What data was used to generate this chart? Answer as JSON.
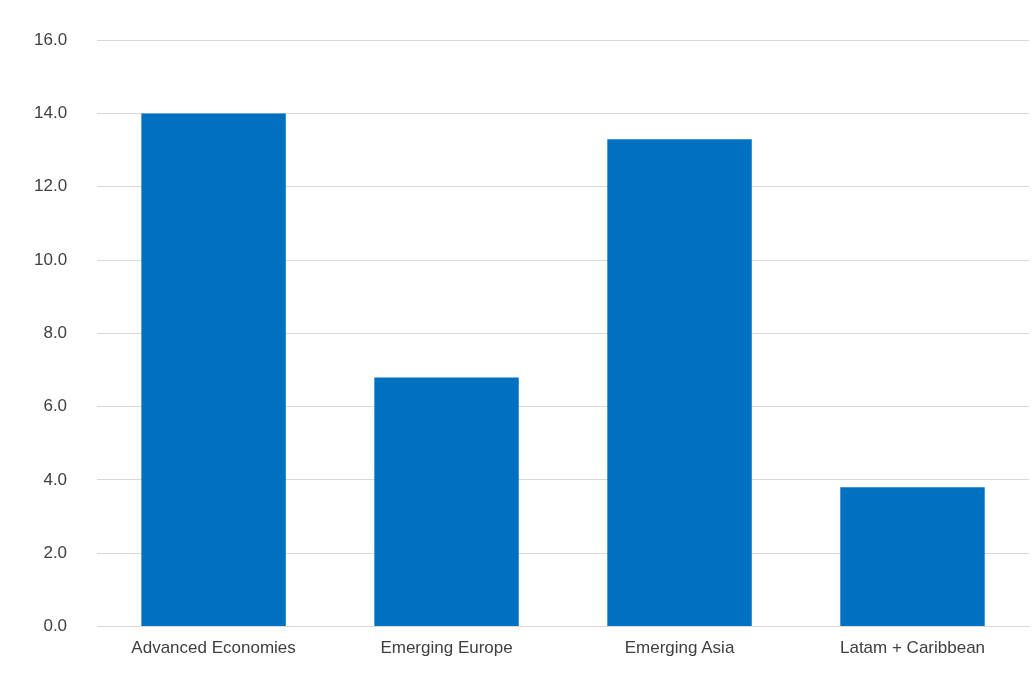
{
  "chart_data": {
    "type": "bar",
    "categories": [
      "Advanced Economies",
      "Emerging Europe",
      "Emerging Asia",
      "Latam + Caribbean"
    ],
    "values": [
      14.0,
      6.8,
      13.3,
      3.8
    ],
    "color": "#0070c0",
    "ylim": [
      0,
      16
    ],
    "yticks": [
      {
        "value": 0,
        "label": "0.0"
      },
      {
        "value": 2,
        "label": "2.0"
      },
      {
        "value": 4,
        "label": "4.0"
      },
      {
        "value": 6,
        "label": "6.0"
      },
      {
        "value": 8,
        "label": "8.0"
      },
      {
        "value": 10,
        "label": "10.0"
      },
      {
        "value": 12,
        "label": "12.0"
      },
      {
        "value": 14,
        "label": "14.0"
      },
      {
        "value": 16,
        "label": "16.0"
      }
    ],
    "grid": "y",
    "legend": false
  }
}
